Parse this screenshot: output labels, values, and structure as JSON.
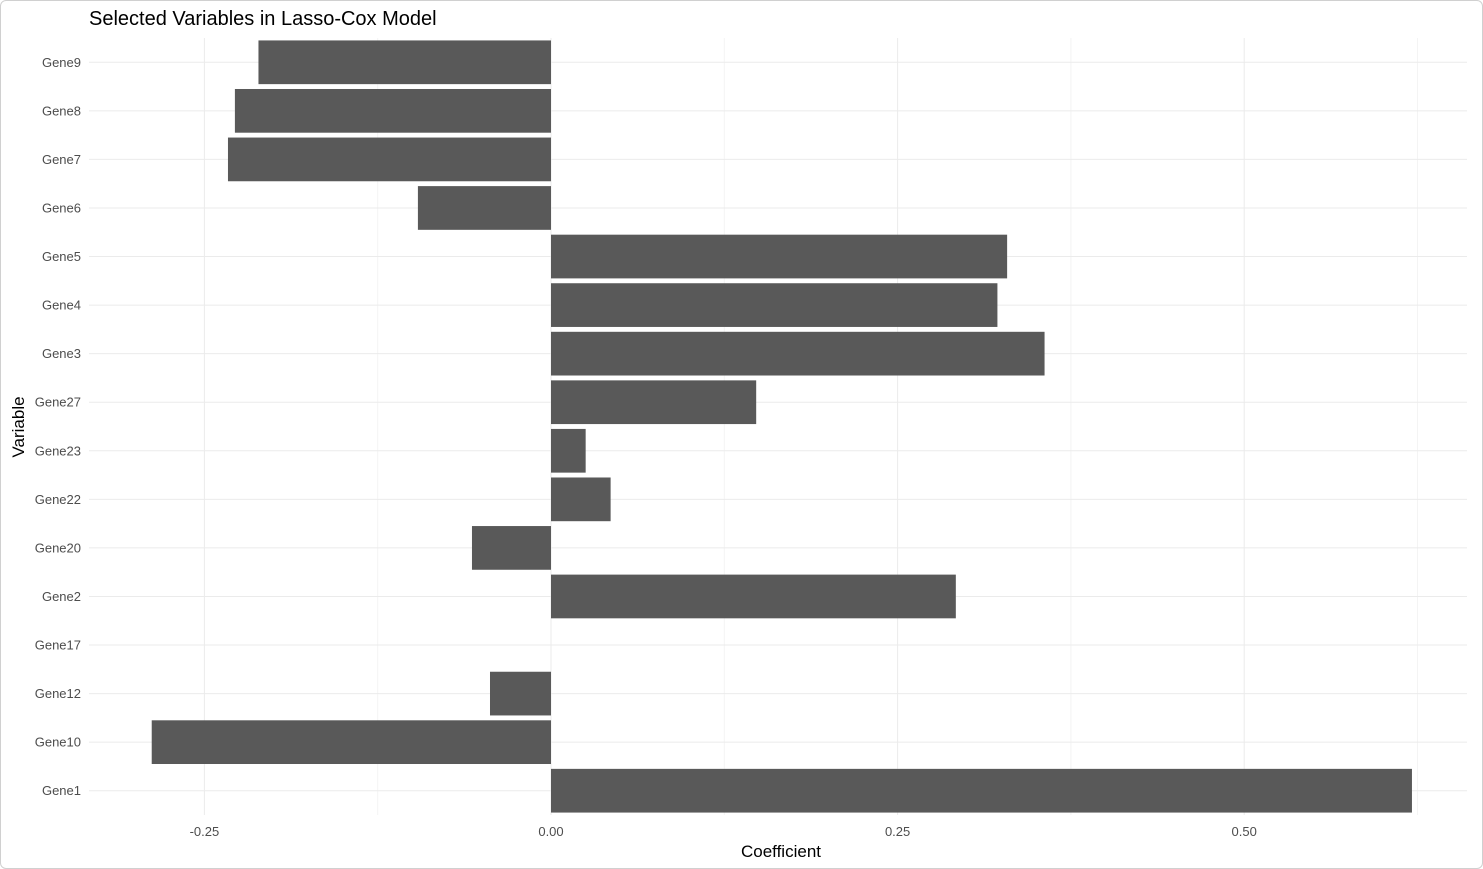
{
  "chart_data": {
    "type": "bar",
    "orientation": "horizontal",
    "title": "Selected Variables in Lasso-Cox Model",
    "xlabel": "Coefficient",
    "ylabel": "Variable",
    "xlim": [
      -0.3,
      0.625
    ],
    "xticks": [
      -0.25,
      0.0,
      0.25,
      0.5
    ],
    "xtick_labels": [
      "-0.25",
      "0.00",
      "0.25",
      "0.50"
    ],
    "grid": true,
    "legend": "none",
    "bar_color": "#595959",
    "categories": [
      "Gene9",
      "Gene8",
      "Gene7",
      "Gene6",
      "Gene5",
      "Gene4",
      "Gene3",
      "Gene27",
      "Gene23",
      "Gene22",
      "Gene20",
      "Gene2",
      "Gene17",
      "Gene12",
      "Gene10",
      "Gene1"
    ],
    "values": [
      -0.211,
      -0.228,
      -0.233,
      -0.096,
      0.329,
      0.322,
      0.356,
      0.148,
      0.025,
      0.043,
      -0.057,
      0.292,
      0.0,
      -0.044,
      -0.288,
      0.621
    ]
  }
}
